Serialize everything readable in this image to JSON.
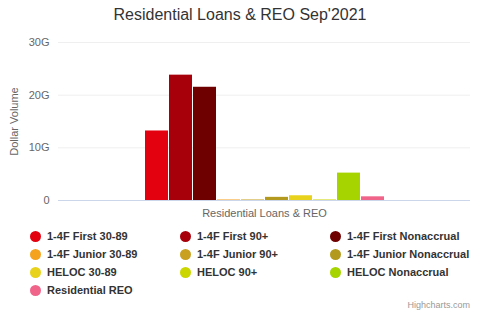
{
  "chart_data": {
    "type": "bar",
    "title": "Residential Loans & REO Sep'2021",
    "y_label": "Dollar Volume",
    "categories": [
      "Residential Loans & REO"
    ],
    "series": [
      {
        "name": "1-4F First 30-89",
        "color": "#e3000f",
        "values": [
          13.2
        ]
      },
      {
        "name": "1-4F First 90+",
        "color": "#a8000a",
        "values": [
          23.8
        ]
      },
      {
        "name": "1-4F First Nonaccrual",
        "color": "#6e0000",
        "values": [
          21.5
        ]
      },
      {
        "name": "1-4F Junior 30-89",
        "color": "#f5a21e",
        "values": [
          0.1
        ]
      },
      {
        "name": "1-4F Junior 90+",
        "color": "#c9a020",
        "values": [
          0.1
        ]
      },
      {
        "name": "1-4F Junior Nonaccrual",
        "color": "#b39a1e",
        "values": [
          0.6
        ]
      },
      {
        "name": "HELOC 30-89",
        "color": "#e8d21c",
        "values": [
          0.9
        ]
      },
      {
        "name": "HELOC 90+",
        "color": "#cbd600",
        "values": [
          0.1
        ]
      },
      {
        "name": "HELOC Nonaccrual",
        "color": "#a6d400",
        "values": [
          5.2
        ]
      },
      {
        "name": "Residential REO",
        "color": "#f0648a",
        "values": [
          0.7
        ]
      }
    ],
    "ylim": [
      0,
      30
    ],
    "yticks": [
      0,
      {
        "value": 10,
        "label": "10G"
      },
      {
        "value": 20,
        "label": "20G"
      },
      {
        "value": 30,
        "label": "30G"
      }
    ],
    "grid": true,
    "legend": "bottom",
    "credits": "Highcharts.com"
  }
}
